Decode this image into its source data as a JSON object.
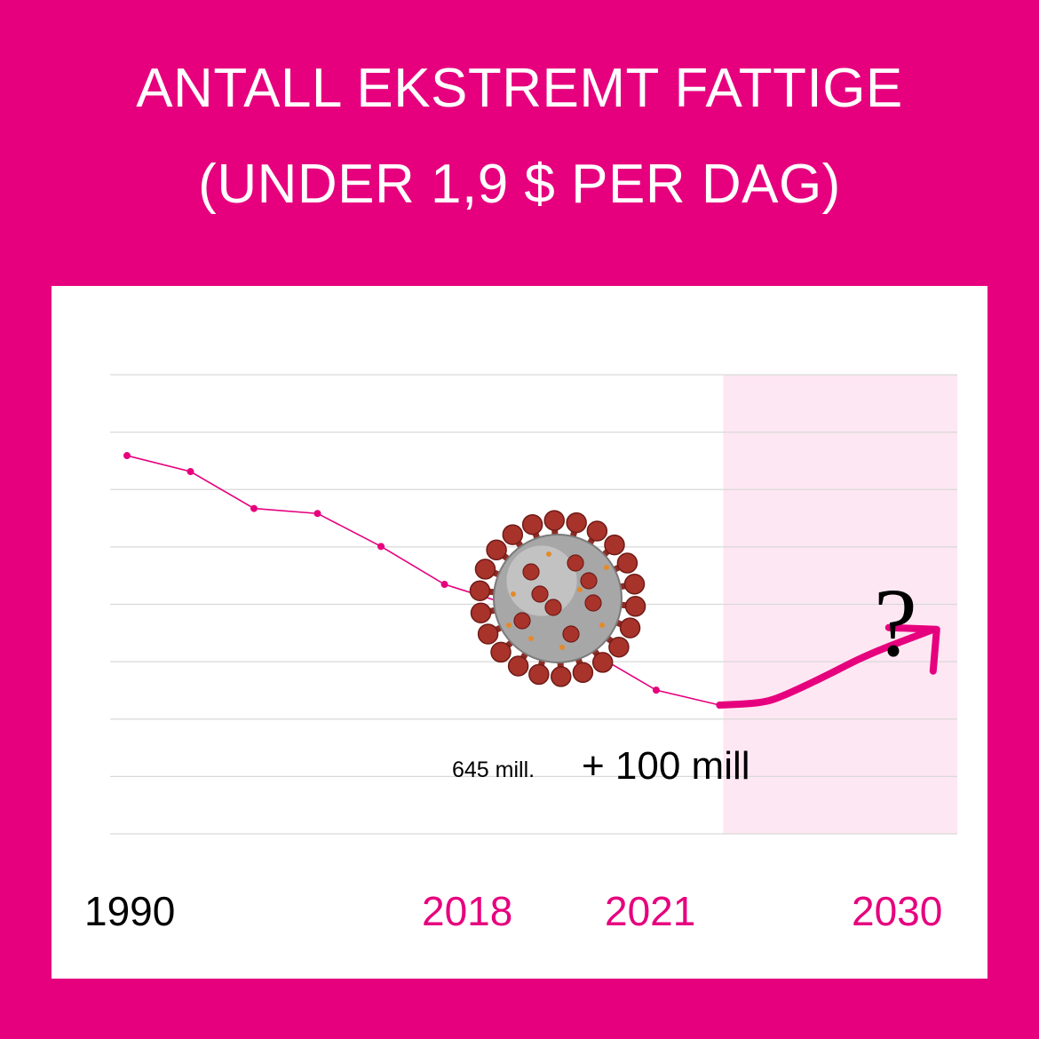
{
  "colors": {
    "background": "#e6007e",
    "accent": "#e6007e",
    "forecast_shade": "#fde7f2",
    "grid": "#d9d9d9",
    "text_dark": "#000000"
  },
  "icons": {
    "virus": "coronavirus-icon",
    "arrow": "upward-arrow-icon"
  },
  "chart_data": {
    "type": "line",
    "title_lines": [
      "ANTALL EKSTREMT FATTIGE",
      "(UNDER 1,9 $ PER DAG)"
    ],
    "xlabel": "",
    "ylabel": "",
    "x_tick_labels": [
      {
        "label": "1990",
        "x": 1990,
        "color": "#000000"
      },
      {
        "label": "2018",
        "x": 2018,
        "color": "#e6007e"
      },
      {
        "label": "2021",
        "x": 2021,
        "color": "#e6007e"
      },
      {
        "label": "2030",
        "x": 2030,
        "color": "#e6007e"
      }
    ],
    "xlim": [
      1990,
      2030
    ],
    "grid": true,
    "grid_lines": 9,
    "forecast_region_start": 2018,
    "series": [
      {
        "values": [
          {
            "x": 1990,
            "y": 1895
          },
          {
            "x": 1993,
            "y": 1815
          },
          {
            "x": 1996,
            "y": 1630
          },
          {
            "x": 1999,
            "y": 1605
          },
          {
            "x": 2002,
            "y": 1440
          },
          {
            "x": 2005,
            "y": 1250
          },
          {
            "x": 2008,
            "y": 1150
          },
          {
            "x": 2010,
            "y": 1030
          },
          {
            "x": 2015,
            "y": 720
          },
          {
            "x": 2018,
            "y": 645
          }
        ]
      }
    ],
    "projection": {
      "values": [
        {
          "x": 2018,
          "y": 645
        },
        {
          "x": 2020,
          "y": 655
        },
        {
          "x": 2021,
          "y": 690
        },
        {
          "x": 2023,
          "y": 790
        },
        {
          "x": 2025,
          "y": 900
        },
        {
          "x": 2028,
          "y": 1020
        }
      ]
    },
    "annotations": {
      "value_label": "645 mill.",
      "increase_label": "+ 100 mill",
      "question_mark": "?"
    }
  }
}
